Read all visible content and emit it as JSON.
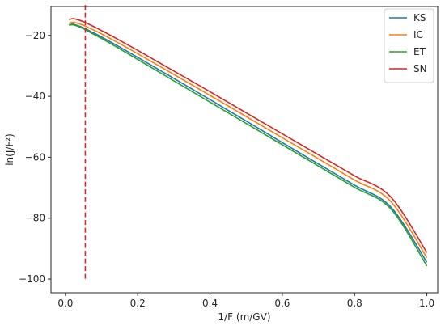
{
  "chart_data": {
    "type": "line",
    "xlabel": "1/F (m/GV)",
    "ylabel": "ln(J/F²)",
    "xlim": [
      -0.04,
      1.03
    ],
    "ylim": [
      -104.5,
      -10.5
    ],
    "x_ticks": [
      0.0,
      0.2,
      0.4,
      0.6,
      0.8,
      1.0
    ],
    "x_tick_labels": [
      "0.0",
      "0.2",
      "0.4",
      "0.6",
      "0.8",
      "1.0"
    ],
    "y_ticks": [
      -20,
      -40,
      -60,
      -80,
      -100
    ],
    "y_tick_labels": [
      "−20",
      "−40",
      "−60",
      "−80",
      "−100"
    ],
    "grid": false,
    "legend_position": "top-right",
    "series": [
      {
        "name": "KS",
        "color": "#1f77b4",
        "x": [
          0.01,
          0.02,
          0.03,
          0.05,
          0.07,
          0.1,
          0.15,
          0.2,
          0.3,
          0.4,
          0.5,
          0.6,
          0.7,
          0.8,
          0.9,
          1.0
        ],
        "y": [
          -16.5,
          -16.3,
          -16.6,
          -17.5,
          -18.7,
          -20.5,
          -23.8,
          -27.2,
          -34.1,
          -41.1,
          -48.1,
          -55.2,
          -62.2,
          -69.2,
          -76.3,
          -94.5
        ]
      },
      {
        "name": "IC",
        "color": "#ff7f0e",
        "x": [
          0.01,
          0.02,
          0.03,
          0.05,
          0.07,
          0.1,
          0.15,
          0.2,
          0.3,
          0.4,
          0.5,
          0.6,
          0.7,
          0.8,
          0.9,
          1.0
        ],
        "y": [
          -16.0,
          -15.7,
          -15.9,
          -16.7,
          -17.8,
          -19.5,
          -22.7,
          -26.0,
          -32.8,
          -39.7,
          -46.6,
          -53.6,
          -60.5,
          -67.5,
          -74.5,
          -93.0
        ]
      },
      {
        "name": "ET",
        "color": "#2ca02c",
        "x": [
          0.01,
          0.02,
          0.03,
          0.05,
          0.07,
          0.1,
          0.15,
          0.2,
          0.3,
          0.4,
          0.5,
          0.6,
          0.7,
          0.8,
          0.9,
          1.0
        ],
        "y": [
          -16.6,
          -16.5,
          -16.8,
          -17.8,
          -19.1,
          -21.0,
          -24.4,
          -27.9,
          -34.9,
          -41.9,
          -48.9,
          -55.9,
          -62.9,
          -69.9,
          -76.9,
          -95.7
        ]
      },
      {
        "name": "SN",
        "color": "#d62728",
        "x": [
          0.01,
          0.02,
          0.03,
          0.05,
          0.07,
          0.1,
          0.15,
          0.2,
          0.3,
          0.4,
          0.5,
          0.6,
          0.7,
          0.8,
          0.9,
          1.0
        ],
        "y": [
          -14.8,
          -14.5,
          -14.7,
          -15.5,
          -16.6,
          -18.4,
          -21.6,
          -24.9,
          -31.7,
          -38.5,
          -45.4,
          -52.3,
          -59.2,
          -66.1,
          -73.0,
          -91.3
        ]
      }
    ],
    "annotations": [
      {
        "type": "vertical-dashed-line",
        "x": 0.055,
        "y_range": [
          -10,
          -100
        ],
        "color": "#d62728"
      }
    ]
  }
}
